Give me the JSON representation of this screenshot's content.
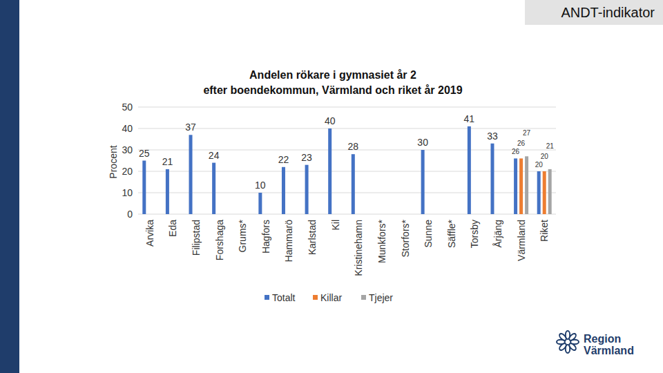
{
  "header": {
    "label": "ANDT-indikator"
  },
  "logo": {
    "lines": [
      "Region",
      "Värmland"
    ]
  },
  "chart_data": {
    "type": "bar",
    "title": "Andelen rökare i gymnasiet år 2\nefter boendekommun, Värmland och riket år 2019",
    "y_label": "Procent",
    "categories": [
      "Arvika",
      "Eda",
      "Filipstad",
      "Forshaga",
      "Grums*",
      "Hagfors",
      "Hammarö",
      "Karlstad",
      "Kil",
      "Kristinehamn",
      "Munkfors*",
      "Storfors*",
      "Sunne",
      "Säffle*",
      "Torsby",
      "Årjäng",
      "Värmland",
      "Riket"
    ],
    "series": [
      {
        "name": "Totalt",
        "color": "#4472c4",
        "values": [
          25,
          21,
          37,
          24,
          null,
          10,
          22,
          23,
          40,
          28,
          null,
          null,
          30,
          null,
          41,
          33,
          26,
          20
        ]
      },
      {
        "name": "Killar",
        "color": "#ed7d31",
        "values": [
          null,
          null,
          null,
          null,
          null,
          null,
          null,
          null,
          null,
          null,
          null,
          null,
          null,
          null,
          null,
          null,
          26,
          20
        ]
      },
      {
        "name": "Tjejer",
        "color": "#a5a5a5",
        "values": [
          null,
          null,
          null,
          null,
          null,
          null,
          null,
          null,
          null,
          null,
          null,
          null,
          null,
          null,
          null,
          null,
          27,
          21
        ]
      }
    ],
    "ylim": [
      0,
      50
    ],
    "yticks": [
      0,
      10,
      20,
      30,
      40,
      50
    ],
    "grid": true,
    "legend": "bottom",
    "data_labels": true
  }
}
